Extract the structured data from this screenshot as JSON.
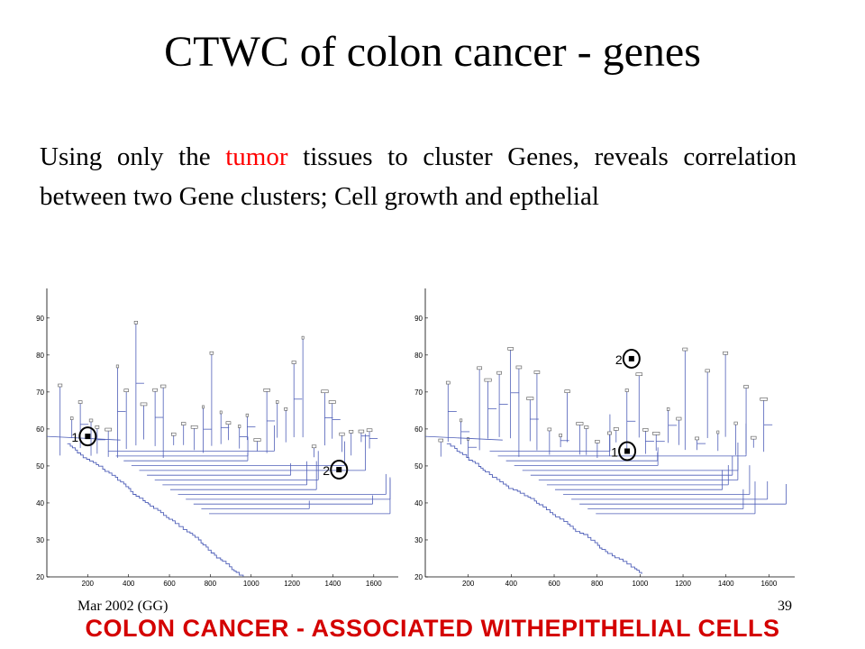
{
  "slide": {
    "title": "CTWC of colon cancer - genes",
    "body": {
      "before": "Using only the ",
      "highlight": "tumor",
      "after": " tissues to cluster Genes, reveals correlation between two Gene clusters; Cell growth and epthelial",
      "highlight_color": "#ff0000"
    },
    "footer_left": "Mar 2002 (GG)",
    "footer_right": "39",
    "footer_banner": "COLON CANCER - ASSOCIATED WITHEPITHELIAL CELLS",
    "banner_color": "#d40000",
    "tree_color": "#4f5fb8"
  },
  "chart_data": [
    {
      "type": "dendrogram",
      "yticks": [
        20,
        30,
        40,
        50,
        60,
        70,
        80,
        90
      ],
      "xticks": [
        200,
        400,
        600,
        800,
        1000,
        1200,
        1400,
        1600
      ],
      "ylim": [
        20,
        98
      ],
      "xlim": [
        0,
        1720
      ],
      "markers": [
        {
          "label": "1",
          "x": 200,
          "y": 58
        },
        {
          "label": "2",
          "x": 1430,
          "y": 49
        }
      ]
    },
    {
      "type": "dendrogram",
      "yticks": [
        20,
        30,
        40,
        50,
        60,
        70,
        80,
        90
      ],
      "xticks": [
        200,
        400,
        600,
        800,
        1000,
        1200,
        1400,
        1600
      ],
      "ylim": [
        20,
        98
      ],
      "xlim": [
        0,
        1720
      ],
      "markers": [
        {
          "label": "1",
          "x": 940,
          "y": 54
        },
        {
          "label": "2",
          "x": 960,
          "y": 79
        }
      ]
    }
  ]
}
